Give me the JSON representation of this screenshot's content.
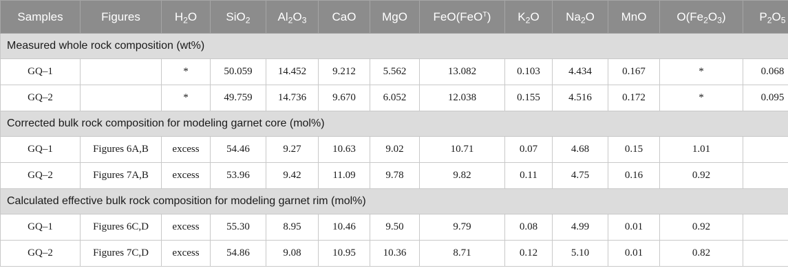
{
  "headers": [
    {
      "base": "Samples"
    },
    {
      "base": "Figures"
    },
    {
      "base": "H",
      "sub": "2",
      "tail": "O"
    },
    {
      "base": "SiO",
      "sub": "2"
    },
    {
      "base": "Al",
      "sub": "2",
      "tail": "O",
      "sub2": "3"
    },
    {
      "base": "CaO"
    },
    {
      "base": "MgO"
    },
    {
      "base": "FeO(FeO",
      "sup": "T",
      "tail": ")"
    },
    {
      "base": "K",
      "sub": "2",
      "tail": "O"
    },
    {
      "base": "Na",
      "sub": "2",
      "tail": "O"
    },
    {
      "base": "MnO"
    },
    {
      "base": "O(Fe",
      "sub": "2",
      "tail": "O",
      "sub2": "3",
      "tail2": ")"
    },
    {
      "base": "P",
      "sub": "2",
      "tail": "O",
      "sub2": "5"
    }
  ],
  "sections": [
    {
      "title": "Measured whole rock composition (wt%)",
      "rows": [
        [
          "GQ–1",
          "",
          "*",
          "50.059",
          "14.452",
          "9.212",
          "5.562",
          "13.082",
          "0.103",
          "4.434",
          "0.167",
          "*",
          "0.068"
        ],
        [
          "GQ–2",
          "",
          "*",
          "49.759",
          "14.736",
          "9.670",
          "6.052",
          "12.038",
          "0.155",
          "4.516",
          "0.172",
          "*",
          "0.095"
        ]
      ]
    },
    {
      "title": "Corrected bulk rock composition for modeling garnet core (mol%)",
      "rows": [
        [
          "GQ–1",
          "Figures 6A,B",
          "excess",
          "54.46",
          "9.27",
          "10.63",
          "9.02",
          "10.71",
          "0.07",
          "4.68",
          "0.15",
          "1.01",
          ""
        ],
        [
          "GQ–2",
          "Figures 7A,B",
          "excess",
          "53.96",
          "9.42",
          "11.09",
          "9.78",
          "9.82",
          "0.11",
          "4.75",
          "0.16",
          "0.92",
          ""
        ]
      ]
    },
    {
      "title": "Calculated effective bulk rock composition for modeling garnet rim (mol%)",
      "rows": [
        [
          "GQ–1",
          "Figures 6C,D",
          "excess",
          "55.30",
          "8.95",
          "10.46",
          "9.50",
          "9.79",
          "0.08",
          "4.99",
          "0.01",
          "0.92",
          ""
        ],
        [
          "GQ–2",
          "Figures 7C,D",
          "excess",
          "54.86",
          "9.08",
          "10.95",
          "10.36",
          "8.71",
          "0.12",
          "5.10",
          "0.01",
          "0.82",
          ""
        ]
      ]
    }
  ]
}
